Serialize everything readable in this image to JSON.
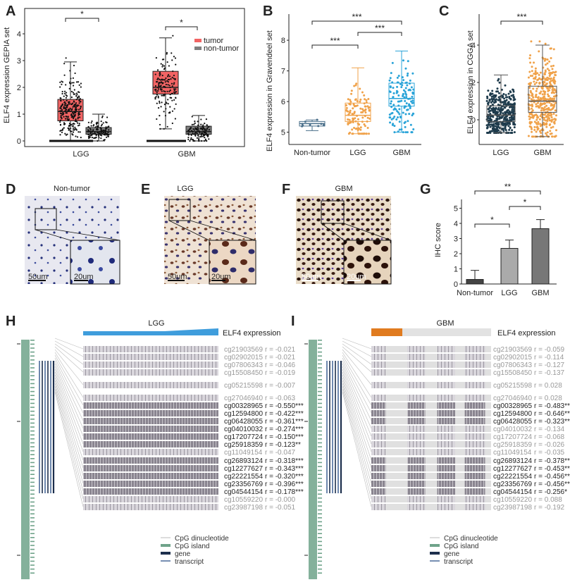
{
  "panels": {
    "A": {
      "label": "A",
      "ylabel": "ELF4 expression GEPIA set",
      "yticks": [
        "0",
        "1",
        "2",
        "3",
        "4"
      ],
      "categories": [
        "LGG",
        "GBM"
      ],
      "legend": [
        "tumor",
        "non-tumor"
      ],
      "sig": [
        "*",
        "*"
      ]
    },
    "B": {
      "label": "B",
      "ylabel": "ELF4 expression in Gravendeel set",
      "yticks": [
        "5",
        "6",
        "7",
        "8"
      ],
      "categories": [
        "Non-tumor",
        "LGG",
        "GBM"
      ],
      "sig": [
        "***",
        "***",
        "***"
      ]
    },
    "C": {
      "label": "C",
      "ylabel": "ELF4 expression in CGGA set",
      "yticks": [
        "0",
        "2",
        "4"
      ],
      "categories": [
        "LGG",
        "GBM"
      ],
      "sig": [
        "***"
      ]
    },
    "D": {
      "label": "D",
      "title": "Non-tumor",
      "scale1": "50um",
      "scale2": "20um"
    },
    "E": {
      "label": "E",
      "title": "LGG",
      "scale1": "50um",
      "scale2": "20um"
    },
    "F": {
      "label": "F",
      "title": "GBM",
      "scale1": "50um",
      "scale2": "20um"
    },
    "G": {
      "label": "G",
      "ylabel": "IHC score",
      "yticks": [
        "0",
        "1",
        "2",
        "3",
        "4",
        "5"
      ],
      "categories": [
        "Non-tumor",
        "LGG",
        "GBM"
      ],
      "sig": [
        "*",
        "*",
        "**"
      ]
    },
    "H": {
      "label": "H",
      "title": "LGG",
      "expr_label": "ELF4 expression",
      "probes": [
        {
          "id": "cg21903569",
          "r": "r = -0.021"
        },
        {
          "id": "cg02902015",
          "r": "r = -0.021"
        },
        {
          "id": "cg07806343",
          "r": "r = -0.046"
        },
        {
          "id": "cg15508450",
          "r": "r = -0.019"
        },
        {
          "id": "cg05215598",
          "r": "r = -0.007"
        },
        {
          "id": "cg27046940",
          "r": "r = -0.063"
        },
        {
          "id": "cg00328965",
          "r": "r = -0.550***"
        },
        {
          "id": "cg12594800",
          "r": "r = -0.422***"
        },
        {
          "id": "cg06428055",
          "r": "r = -0.361***"
        },
        {
          "id": "cg04010032",
          "r": "r = -0.274***"
        },
        {
          "id": "cg17207724",
          "r": "r = -0.150***"
        },
        {
          "id": "cg25918359",
          "r": "r = -0.123**"
        },
        {
          "id": "cg11049154",
          "r": "r = -0.047"
        },
        {
          "id": "cg26893124",
          "r": "r = -0.318***"
        },
        {
          "id": "cg12277627",
          "r": "r = -0.343***"
        },
        {
          "id": "cg22221554",
          "r": "r = -0.320***"
        },
        {
          "id": "cg23356769",
          "r": "r = -0.396***"
        },
        {
          "id": "cg04544154",
          "r": "r = -0.178***"
        },
        {
          "id": "cg10559220",
          "r": "r = -0.000"
        },
        {
          "id": "cg23987198",
          "r": "r = -0.051"
        }
      ],
      "legend": [
        "CpG dinucleotide",
        "CpG island",
        "gene",
        "transcript"
      ]
    },
    "I": {
      "label": "I",
      "title": "GBM",
      "expr_label": "ELF4 expression",
      "probes": [
        {
          "id": "cg21903569",
          "r": "r = -0.059"
        },
        {
          "id": "cg02902015",
          "r": "r = -0.114"
        },
        {
          "id": "cg07806343",
          "r": "r = -0.127"
        },
        {
          "id": "cg15508450",
          "r": "r = -0.137"
        },
        {
          "id": "cg05215598",
          "r": "r = 0.028"
        },
        {
          "id": "cg27046940",
          "r": "r = 0.028"
        },
        {
          "id": "cg00328965",
          "r": "r = -0.483***"
        },
        {
          "id": "cg12594800",
          "r": "r = -0.646***"
        },
        {
          "id": "cg06428055",
          "r": "r = -0.323**"
        },
        {
          "id": "cg04010032",
          "r": "r = -0.134"
        },
        {
          "id": "cg17207724",
          "r": "r = -0.068"
        },
        {
          "id": "cg25918359",
          "r": "r = -0.026"
        },
        {
          "id": "cg11049154",
          "r": "r = -0.035"
        },
        {
          "id": "cg26893124",
          "r": "r = -0.378**"
        },
        {
          "id": "cg12277627",
          "r": "r = -0.453***"
        },
        {
          "id": "cg22221554",
          "r": "r = -0.456***"
        },
        {
          "id": "cg23356769",
          "r": "r = -0.456***"
        },
        {
          "id": "cg04544154",
          "r": "r = -0.256*"
        },
        {
          "id": "cg10559220",
          "r": "r = 0.088"
        },
        {
          "id": "cg23987198",
          "r": "r = -0.192"
        }
      ],
      "legend": [
        "CpG dinucleotide",
        "CpG island",
        "gene",
        "transcript"
      ]
    }
  },
  "colors": {
    "tumor": "#f26464",
    "non_tumor": "#808080",
    "lgg_orange": "#f0a24a",
    "gbm_blue": "#29a3d8",
    "cgga_dark": "#1e3b4c",
    "nontumor_blue": "#4a6f8a",
    "bar_dark": "#444444",
    "bar_light": "#aaaaaa",
    "bar_mid": "#777777",
    "expr_blue": "#3f9ddc",
    "expr_orange": "#e07b1f",
    "cpg_green": "#6fa38a",
    "gene_navy": "#1d2f4d"
  },
  "chart_data": [
    {
      "type": "box",
      "panel": "A",
      "title": "",
      "ylabel": "ELF4 expression GEPIA set",
      "ylim": [
        0,
        4.7
      ],
      "categories": [
        "LGG",
        "GBM"
      ],
      "series": [
        {
          "name": "tumor",
          "q1": [
            0.75,
            1.75
          ],
          "median": [
            1.1,
            2.0
          ],
          "q3": [
            1.55,
            2.6
          ],
          "whisk_lo": [
            0.0,
            0.45
          ],
          "whisk_hi": [
            2.95,
            3.85
          ]
        },
        {
          "name": "non-tumor",
          "q1": [
            0.25,
            0.25
          ],
          "median": [
            0.35,
            0.35
          ],
          "q3": [
            0.5,
            0.55
          ],
          "whisk_lo": [
            0.0,
            0.0
          ],
          "whisk_hi": [
            1.0,
            0.95
          ]
        }
      ]
    },
    {
      "type": "box",
      "panel": "B",
      "ylabel": "ELF4 expression in Gravendeel set",
      "ylim": [
        4.6,
        8.5
      ],
      "categories": [
        "Non-tumor",
        "LGG",
        "GBM"
      ],
      "q1": [
        5.2,
        5.35,
        5.85
      ],
      "median": [
        5.28,
        5.55,
        6.1
      ],
      "q3": [
        5.35,
        5.95,
        6.6
      ],
      "whisk_lo": [
        5.05,
        4.95,
        5.0
      ],
      "whisk_hi": [
        5.4,
        7.1,
        7.65
      ]
    },
    {
      "type": "box",
      "panel": "C",
      "ylabel": "ELF4 expression in CGGA set",
      "ylim": [
        -1.4,
        4.6
      ],
      "categories": [
        "LGG",
        "GBM"
      ],
      "q1": [
        -0.1,
        0.4
      ],
      "median": [
        0.25,
        1.0
      ],
      "q3": [
        0.75,
        1.8
      ],
      "whisk_lo": [
        -0.7,
        -0.9
      ],
      "whisk_hi": [
        2.4,
        4.0
      ]
    },
    {
      "type": "bar",
      "panel": "G",
      "ylabel": "IHC score",
      "ylim": [
        0,
        5
      ],
      "categories": [
        "Non-tumor",
        "LGG",
        "GBM"
      ],
      "values": [
        0.3,
        2.35,
        3.65
      ],
      "errors": [
        0.6,
        0.55,
        0.6
      ]
    }
  ]
}
